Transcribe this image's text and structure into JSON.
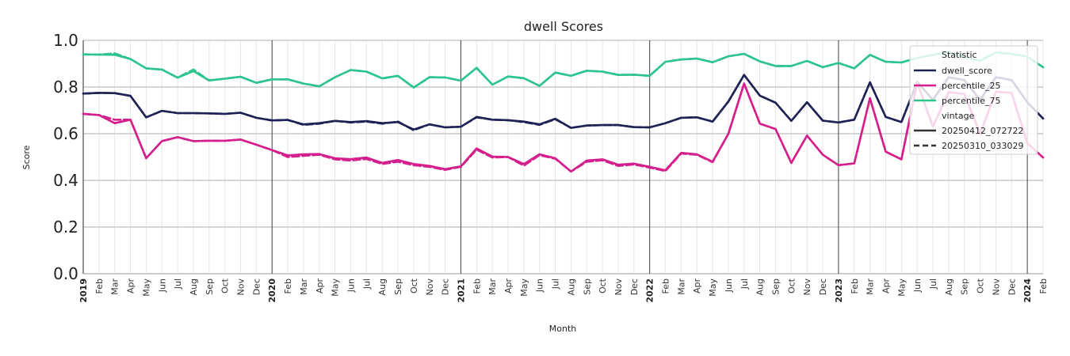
{
  "chart_data": {
    "type": "line",
    "title": "dwell Scores",
    "xlabel": "Month",
    "ylabel": "Score",
    "ylim": [
      0,
      1
    ],
    "yticks": [
      "0.0",
      "0.2",
      "0.4",
      "0.6",
      "0.8",
      "1.0"
    ],
    "grid": true,
    "legend_position": "top-right",
    "x": [
      "2019-01",
      "2019-02",
      "2019-03",
      "2019-04",
      "2019-05",
      "2019-06",
      "2019-07",
      "2019-08",
      "2019-09",
      "2019-10",
      "2019-11",
      "2019-12",
      "2020-01",
      "2020-02",
      "2020-03",
      "2020-04",
      "2020-05",
      "2020-06",
      "2020-07",
      "2020-08",
      "2020-09",
      "2020-10",
      "2020-11",
      "2020-12",
      "2021-01",
      "2021-02",
      "2021-03",
      "2021-04",
      "2021-05",
      "2021-06",
      "2021-07",
      "2021-08",
      "2021-09",
      "2021-10",
      "2021-11",
      "2021-12",
      "2022-01",
      "2022-02",
      "2022-03",
      "2022-04",
      "2022-05",
      "2022-06",
      "2022-07",
      "2022-08",
      "2022-09",
      "2022-10",
      "2022-11",
      "2022-12",
      "2023-01",
      "2023-02",
      "2023-03",
      "2023-04",
      "2023-05",
      "2023-06",
      "2023-07",
      "2023-08",
      "2023-09",
      "2023-10",
      "2023-11",
      "2023-12",
      "2024-01",
      "2024-02"
    ],
    "x_tick_labels": [
      "2019",
      "Feb",
      "Mar",
      "Apr",
      "May",
      "Jun",
      "Jul",
      "Aug",
      "Sep",
      "Oct",
      "Nov",
      "Dec",
      "2020",
      "Feb",
      "Mar",
      "Apr",
      "May",
      "Jun",
      "Jul",
      "Aug",
      "Sep",
      "Oct",
      "Nov",
      "Dec",
      "2021",
      "Feb",
      "Mar",
      "Apr",
      "May",
      "Jun",
      "Jul",
      "Aug",
      "Sep",
      "Oct",
      "Nov",
      "Dec",
      "2022",
      "Feb",
      "Mar",
      "Apr",
      "May",
      "Jun",
      "Jul",
      "Aug",
      "Sep",
      "Oct",
      "Nov",
      "Dec",
      "2023",
      "Feb",
      "Mar",
      "Apr",
      "May",
      "Jun",
      "Jul",
      "Aug",
      "Sep",
      "Oct",
      "Nov",
      "Dec",
      "2024",
      "Feb"
    ],
    "series": [
      {
        "name": "dwell_score",
        "vintage": "20250412_072722",
        "color": "#1f2255",
        "dash": "solid",
        "values": [
          0.772,
          0.775,
          0.774,
          0.762,
          0.67,
          0.698,
          0.688,
          0.688,
          0.687,
          0.685,
          0.69,
          0.668,
          0.657,
          0.659,
          0.64,
          0.645,
          0.655,
          0.65,
          0.654,
          0.645,
          0.65,
          0.618,
          0.64,
          0.627,
          0.63,
          0.672,
          0.66,
          0.658,
          0.652,
          0.64,
          0.664,
          0.625,
          0.635,
          0.637,
          0.637,
          0.628,
          0.627,
          0.645,
          0.668,
          0.67,
          0.652,
          0.738,
          0.852,
          0.763,
          0.733,
          0.655,
          0.735,
          0.656,
          0.648,
          0.66,
          0.82,
          0.672,
          0.65,
          0.822,
          0.745,
          0.842,
          0.83,
          0.745,
          0.842,
          0.83,
          0.735,
          0.665
        ]
      },
      {
        "name": "dwell_score",
        "vintage": "20250310_033029",
        "color": "#1f2255",
        "dash": "dashed",
        "values": [
          0.772,
          0.775,
          0.774,
          0.762,
          0.67,
          0.698,
          0.688,
          0.688,
          0.687,
          0.685,
          0.69,
          0.668,
          0.657,
          0.659,
          0.638,
          0.643,
          0.655,
          0.648,
          0.652,
          0.643,
          0.652,
          0.615,
          0.64,
          0.627,
          0.63,
          0.67,
          0.66,
          0.658,
          0.65,
          0.638,
          0.662,
          0.625,
          0.635,
          0.637,
          0.637,
          0.628,
          0.627,
          0.645,
          0.668,
          0.67,
          0.652,
          0.738,
          0.852,
          0.763,
          0.733,
          0.655,
          0.735,
          0.656,
          0.648,
          0.66,
          0.82,
          0.672,
          0.65,
          0.822,
          0.745,
          0.842,
          0.83,
          0.745,
          0.842,
          0.83,
          0.735,
          0.665
        ]
      },
      {
        "name": "percentile_25",
        "vintage": "20250412_072722",
        "color": "#d41f8c",
        "dash": "solid",
        "values": [
          0.685,
          0.68,
          0.645,
          0.66,
          0.495,
          0.568,
          0.585,
          0.568,
          0.57,
          0.57,
          0.575,
          0.553,
          0.53,
          0.507,
          0.512,
          0.513,
          0.495,
          0.491,
          0.498,
          0.475,
          0.487,
          0.47,
          0.462,
          0.448,
          0.46,
          0.537,
          0.502,
          0.5,
          0.47,
          0.512,
          0.495,
          0.438,
          0.485,
          0.49,
          0.467,
          0.472,
          0.458,
          0.443,
          0.518,
          0.512,
          0.48,
          0.6,
          0.815,
          0.643,
          0.62,
          0.475,
          0.592,
          0.51,
          0.465,
          0.473,
          0.752,
          0.523,
          0.49,
          0.82,
          0.63,
          0.778,
          0.77,
          0.6,
          0.78,
          0.775,
          0.56,
          0.498
        ]
      },
      {
        "name": "percentile_25",
        "vintage": "20250310_033029",
        "color": "#d41f8c",
        "dash": "dashed",
        "values": [
          0.685,
          0.68,
          0.66,
          0.66,
          0.495,
          0.568,
          0.585,
          0.568,
          0.57,
          0.57,
          0.575,
          0.553,
          0.53,
          0.5,
          0.505,
          0.51,
          0.49,
          0.485,
          0.492,
          0.47,
          0.48,
          0.465,
          0.458,
          0.445,
          0.458,
          0.532,
          0.498,
          0.5,
          0.463,
          0.508,
          0.493,
          0.438,
          0.48,
          0.486,
          0.462,
          0.468,
          0.455,
          0.44,
          0.515,
          0.51,
          0.478,
          0.6,
          0.815,
          0.643,
          0.62,
          0.475,
          0.592,
          0.51,
          0.465,
          0.473,
          0.752,
          0.523,
          0.49,
          0.82,
          0.63,
          0.778,
          0.77,
          0.6,
          0.78,
          0.775,
          0.56,
          0.498
        ]
      },
      {
        "name": "percentile_75",
        "vintage": "20250412_072722",
        "color": "#2ec48d",
        "dash": "solid",
        "values": [
          0.94,
          0.939,
          0.938,
          0.92,
          0.88,
          0.875,
          0.84,
          0.868,
          0.828,
          0.836,
          0.844,
          0.818,
          0.833,
          0.833,
          0.815,
          0.803,
          0.842,
          0.873,
          0.866,
          0.837,
          0.848,
          0.798,
          0.842,
          0.841,
          0.827,
          0.882,
          0.81,
          0.845,
          0.838,
          0.805,
          0.862,
          0.848,
          0.87,
          0.866,
          0.852,
          0.853,
          0.848,
          0.908,
          0.918,
          0.922,
          0.906,
          0.932,
          0.942,
          0.91,
          0.89,
          0.89,
          0.912,
          0.885,
          0.903,
          0.88,
          0.938,
          0.908,
          0.905,
          0.925,
          0.938,
          0.95,
          0.928,
          0.912,
          0.948,
          0.942,
          0.93,
          0.885
        ]
      },
      {
        "name": "percentile_75",
        "vintage": "20250310_033029",
        "color": "#2ec48d",
        "dash": "dashed",
        "values": [
          0.94,
          0.939,
          0.944,
          0.92,
          0.88,
          0.875,
          0.84,
          0.875,
          0.828,
          0.836,
          0.844,
          0.818,
          0.833,
          0.833,
          0.815,
          0.803,
          0.842,
          0.873,
          0.866,
          0.837,
          0.848,
          0.798,
          0.842,
          0.841,
          0.827,
          0.882,
          0.81,
          0.845,
          0.838,
          0.805,
          0.862,
          0.848,
          0.87,
          0.866,
          0.852,
          0.853,
          0.848,
          0.908,
          0.918,
          0.922,
          0.906,
          0.932,
          0.942,
          0.91,
          0.89,
          0.89,
          0.912,
          0.885,
          0.903,
          0.88,
          0.938,
          0.908,
          0.905,
          0.925,
          0.938,
          0.95,
          0.928,
          0.912,
          0.948,
          0.942,
          0.93,
          0.885
        ]
      }
    ],
    "legend": {
      "title_statistic": "Statistic",
      "entries": [
        {
          "label": "dwell_score",
          "color": "#1f2255",
          "kind": "line"
        },
        {
          "label": "percentile_25",
          "color": "#d41f8c",
          "kind": "line"
        },
        {
          "label": "percentile_75",
          "color": "#2ec48d",
          "kind": "line"
        }
      ],
      "title_vintage": "vintage",
      "vintage_entries": [
        {
          "label": "20250412_072722",
          "dash": "solid"
        },
        {
          "label": "20250310_033029",
          "dash": "dashed"
        }
      ]
    }
  }
}
